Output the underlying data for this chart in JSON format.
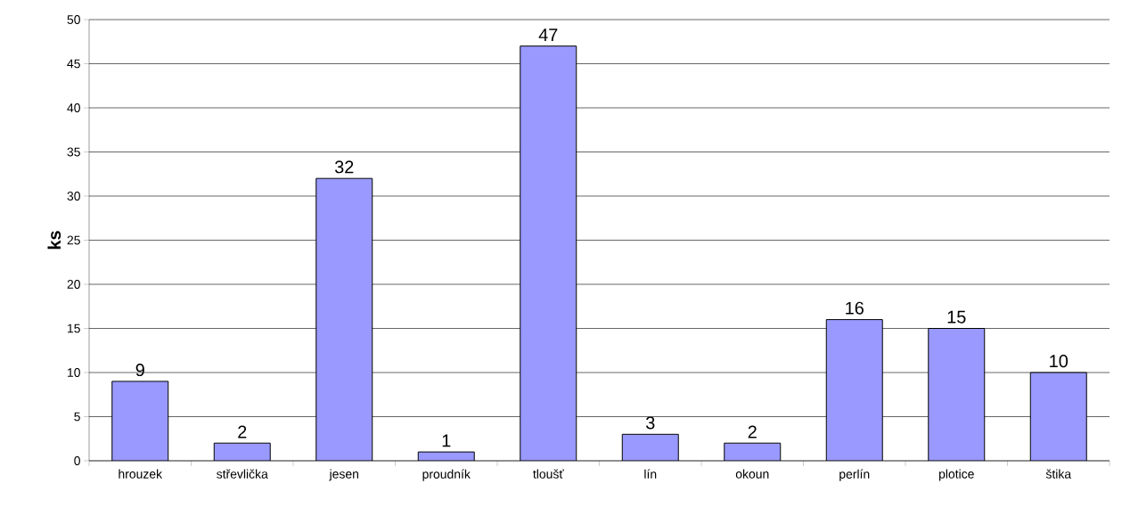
{
  "chart_data": {
    "type": "bar",
    "ylabel": "ks",
    "categories": [
      "hrouzek",
      "střevlička",
      "jesen",
      "proudník",
      "tloušť",
      "lín",
      "okoun",
      "perlín",
      "plotice",
      "štika"
    ],
    "values": [
      9,
      2,
      32,
      1,
      47,
      3,
      2,
      16,
      15,
      10
    ],
    "color": "#9999ff",
    "ylim": [
      0,
      50
    ],
    "yticks": [
      0,
      5,
      10,
      15,
      20,
      25,
      30,
      35,
      40,
      45,
      50
    ],
    "grid": "y",
    "data_labels": true
  }
}
